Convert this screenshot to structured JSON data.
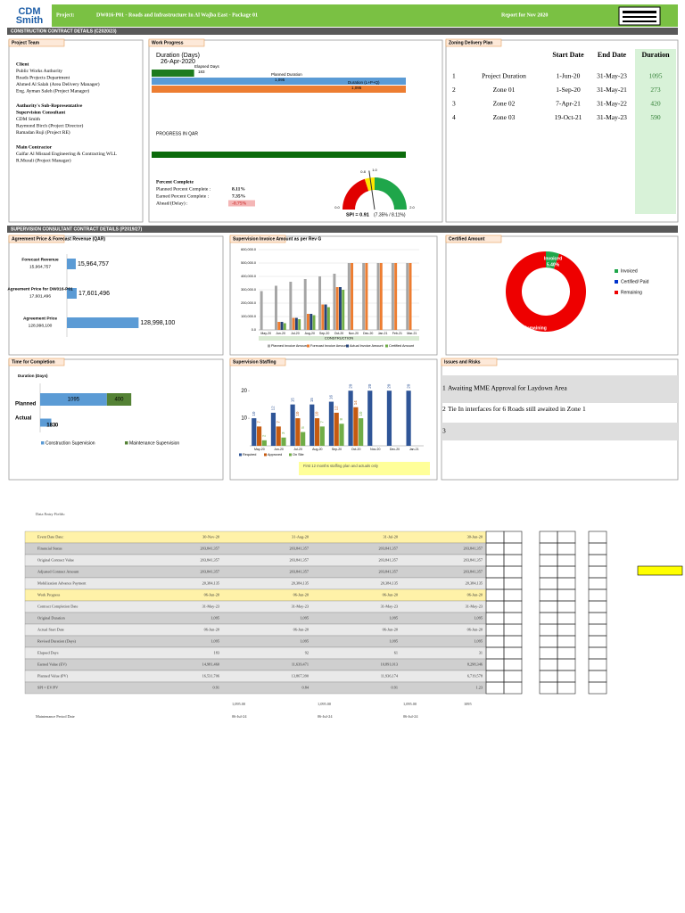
{
  "header": {
    "logo_line1": "CDM",
    "logo_line2": "Smith",
    "project_label": "Project:",
    "project": "DW016-P01 - Roads and Infrastructure In Al Wajba East - Package 01",
    "report": "Report for Nov 2020"
  },
  "sections": [
    "CONSTRUCTION CONTRACT DETAILS (C2020/23)",
    "SUPERVISION CONSULTANT CONTRACT DETAILS (P2019/27)"
  ],
  "project_team": {
    "title": "Project Team",
    "lines": [
      {
        "text": "Client",
        "bold": true
      },
      {
        "text": "Public Works Authority",
        "bold": false
      },
      {
        "text": "Roads Projects Department",
        "bold": false
      },
      {
        "text": "Ahmed Al Salah (Area Delivery Manager)",
        "bold": false
      },
      {
        "text": "Eng. Ayman Saleh (Project Manager)",
        "bold": false
      },
      {
        "text": "Authority's Sub-Representative",
        "bold": true
      },
      {
        "text": "Supervision Consultant",
        "bold": true
      },
      {
        "text": "CDM Smith",
        "bold": false
      },
      {
        "text": "Raymond Birch (Project Director)",
        "bold": false
      },
      {
        "text": "Ramadan Ruji (Project RE)",
        "bold": false
      },
      {
        "text": "Main Contractor",
        "bold": true
      },
      {
        "text": "Galfar Al Misnad Engineering & Contracting WLL",
        "bold": false
      },
      {
        "text": "R.Murali (Project Manager)",
        "bold": false
      }
    ]
  },
  "work_progress": {
    "title": "Work Progress",
    "chart_data": {
      "type": "bar",
      "title": "Duration (Days)",
      "subtitle": "26-Apr-2020",
      "xlim": [
        0,
        1095
      ],
      "categories": [
        "Elapsed Days",
        "Planned Duration",
        "Duration (L+P+Q)"
      ],
      "values": [
        183,
        1095,
        1095
      ],
      "value_labels": [
        "183",
        "1,095",
        "1,095"
      ],
      "colors": [
        "#1e7b1e",
        "#5b9bd5",
        "#ed7d31"
      ]
    },
    "progress_label": "PROGRESS IN QAR",
    "percent_title": "Percent Complete",
    "percent_items": [
      {
        "label": "Planned Percent Complete :",
        "value": "8.11%"
      },
      {
        "label": "Earned Percent Complete :",
        "value": "7.35%"
      },
      {
        "label": "Ahead/(Delay) :",
        "value": "-0.75%"
      }
    ],
    "gauge": {
      "type": "gauge",
      "value": 0.91,
      "label": "SPI = 0.91",
      "note": "(7.35% / 8.11%)",
      "range": [
        0,
        2
      ],
      "ticks": [
        {
          "value": 0,
          "label": "0.0"
        },
        0.8,
        {
          "value": 1,
          "label": "1.0"
        },
        {
          "value": 2,
          "label": "2.0"
        }
      ],
      "band_colors": [
        "#e00000",
        "#ffe600",
        "#1fa64a"
      ]
    }
  },
  "zoning": {
    "title": "Zoning Delivery Plan",
    "headers": [
      "Start Date",
      "End Date",
      "Duration"
    ],
    "rows": [
      {
        "no": 1,
        "name": "Project Duration",
        "start": "1-Jun-20",
        "end": "31-May-23",
        "duration": 1095
      },
      {
        "no": 2,
        "name": "Zone 01",
        "start": "1-Sep-20",
        "end": "31-May-21",
        "duration": 273
      },
      {
        "no": 3,
        "name": "Zone 02",
        "start": "7-Apr-21",
        "end": "31-May-22",
        "duration": 420
      },
      {
        "no": 4,
        "name": "Zone 03",
        "start": "19-Oct-21",
        "end": "31-May-23",
        "duration": 590
      }
    ]
  },
  "agreement": {
    "title": "Agreement Price & Forecast Revenue (QAR)",
    "chart_data": {
      "type": "hbar",
      "xlim": [
        0,
        130000000
      ],
      "categories": [
        "Forecast Revenue",
        "Agreement Price for DW016-P01",
        "Agreement Price"
      ],
      "values": [
        15964757,
        17601496,
        128998100
      ],
      "value_labels": [
        "15,964,757",
        "17,601,496",
        "128,998,100"
      ],
      "color": "#5b9bd5"
    }
  },
  "invoice": {
    "title": "Supervision Invoice Amount as per Rev G",
    "chart_data": {
      "type": "grouped",
      "ylim": [
        0,
        600000
      ],
      "yticks": [
        {
          "value": 0,
          "label": "0.0"
        },
        {
          "value": 100000,
          "label": "100,000.0"
        },
        {
          "value": 200000,
          "label": "200,000.0"
        },
        {
          "value": 300000,
          "label": "300,000.0"
        },
        {
          "value": 400000,
          "label": "400,000.0"
        },
        {
          "value": 500000,
          "label": "500,000.0"
        },
        {
          "value": 600000,
          "label": "600,000.0"
        }
      ],
      "grid": true,
      "x_band_label": "CONSTRUCTION",
      "categories": [
        "May-20",
        "Jun-20",
        "Jul-20",
        "Aug-20",
        "Sep-20",
        "Oct-20",
        "Nov-20",
        "Dec-20",
        "Jan-21",
        "Feb-21",
        "Mar-21"
      ],
      "series": [
        {
          "name": "Planned Invoice Amount",
          "color": "#a5a5a5",
          "values": [
            290000,
            330000,
            360000,
            380000,
            400000,
            420000,
            500000,
            500000,
            500000,
            500000,
            500000
          ]
        },
        {
          "name": "Forecast Invoice Amount",
          "color": "#ed7d31",
          "values": [
            0,
            60000,
            90000,
            120000,
            190000,
            320000,
            500000,
            500000,
            500000,
            500000,
            500000
          ]
        },
        {
          "name": "Actual Invoice Amount",
          "color": "#264478",
          "values": [
            0,
            60000,
            90000,
            120000,
            190000,
            320000,
            null,
            null,
            null,
            null,
            null
          ]
        },
        {
          "name": "Certified Amount",
          "color": "#70ad47",
          "values": [
            0,
            50000,
            80000,
            110000,
            170000,
            300000,
            null,
            null,
            null,
            null,
            null
          ]
        }
      ]
    }
  },
  "certified": {
    "title": "Certified Amount",
    "chart_data": {
      "type": "pie",
      "categories": [
        "Invoiced",
        "Certified/ Paid",
        "Remaining"
      ],
      "values": [
        5.4,
        0,
        94.6
      ],
      "value_labels": [
        "5.40%",
        null,
        "94.60%"
      ],
      "colors": [
        "#1fa64a",
        "#0033cc",
        "#ee0000"
      ],
      "remaining_amount": "15,964,757"
    }
  },
  "time": {
    "title": "Time for Completion",
    "chart_data": {
      "type": "stacked-hbar",
      "title": "Duration (Days)",
      "xlim": [
        0,
        3000
      ],
      "categories": [
        "Planned",
        "Actual"
      ],
      "series": [
        {
          "name": "Construction Supervision",
          "color": "#5b9bd5",
          "values": [
            1095,
            183
          ]
        },
        {
          "name": "Maintenance Supervision",
          "color": "#548235",
          "values": [
            400,
            0
          ]
        }
      ]
    }
  },
  "staffing": {
    "title": "Supervision Staffing",
    "chart_data": {
      "type": "grouped",
      "ylim": [
        0,
        22
      ],
      "yticks": [
        10,
        20
      ],
      "grid": false,
      "categories": [
        "May-20",
        "Jun-20",
        "Jul-20",
        "Aug-20",
        "Sep-20",
        "Oct-20",
        "Nov-20",
        "Dec-20",
        "Jan-21"
      ],
      "series": [
        {
          "name": "Required",
          "color": "#2f5597",
          "values": [
            10,
            12,
            15,
            15,
            16,
            20,
            20,
            20,
            20
          ]
        },
        {
          "name": "Approved",
          "color": "#c55a11",
          "values": [
            7,
            7,
            10,
            10,
            12,
            14,
            null,
            null,
            null
          ]
        },
        {
          "name": "On Site",
          "color": "#70ad47",
          "values": [
            2,
            3,
            5,
            7,
            8,
            10,
            null,
            null,
            null
          ]
        }
      ],
      "note": "First 12 months staffing plan and actuals only"
    }
  },
  "issues": {
    "title": "Issues and Risks",
    "items": [
      {
        "no": 1,
        "text": "Awaiting MME Approval for Laydown Area"
      },
      {
        "no": 2,
        "text": "Tie In interfaces for 6 Roads still awaited in Zone 1"
      },
      {
        "no": 3
      }
    ]
  },
  "data_entry": {
    "title": "Data Entry Fields:",
    "columns": [
      "Event Date Date:",
      "30-Nov-20",
      "31-Aug-20",
      "31-Jul-20",
      "30-Jun-20"
    ],
    "rows": [
      [
        "Financial Status",
        "203,841,357",
        "203,841,357",
        "203,841,357",
        "203,841,357"
      ],
      [
        "Original Contract Value",
        "203,841,357",
        "203,841,357",
        "203,841,357",
        "203,841,357"
      ],
      [
        "Adjusted Contract Amount",
        "203,841,357",
        "203,841,357",
        "203,841,357",
        "203,841,357"
      ],
      [
        "Mobilization Advance Payment",
        "20,384,135",
        "20,384,135",
        "20,384,135",
        "20,384,135"
      ],
      [
        "Work Progress",
        "06-Jun-20",
        "06-Jun-20",
        "06-Jun-20",
        "06-Jun-20"
      ],
      [
        "Contract Completion Date",
        "31-May-23",
        "31-May-23",
        "31-May-23",
        "31-May-23"
      ],
      [
        "Original Duration",
        "1,095",
        "1,095",
        "1,095",
        "1,095"
      ],
      [
        "Actual Start Date",
        "06-Jun-20",
        "06-Jun-20",
        "06-Jun-20",
        "06-Jun-20"
      ],
      [
        "Revised Duration (Days)",
        "1,095",
        "1,095",
        "1,095",
        "1,095"
      ],
      [
        "Elapsed Days",
        "183",
        "92",
        "61",
        "31"
      ],
      [
        "Earned Value (EV)",
        "14,981,460",
        "11,639,471",
        "10,891,013",
        "8,298,346"
      ],
      [
        "Planned Value (PV)",
        "16,531,706",
        "13,867,390",
        "11,936,174",
        "6,719,578"
      ],
      [
        "SPI = EV/PV",
        "0.91",
        "0.84",
        "0.91",
        "1.23"
      ]
    ],
    "footer": [
      [
        "1,095.00",
        "1,095.00",
        "1,095.00",
        "1095"
      ],
      [
        "Maintenance Period Date",
        "06-Jul-24",
        "06-Jul-24",
        "06-Jul-24"
      ]
    ]
  }
}
